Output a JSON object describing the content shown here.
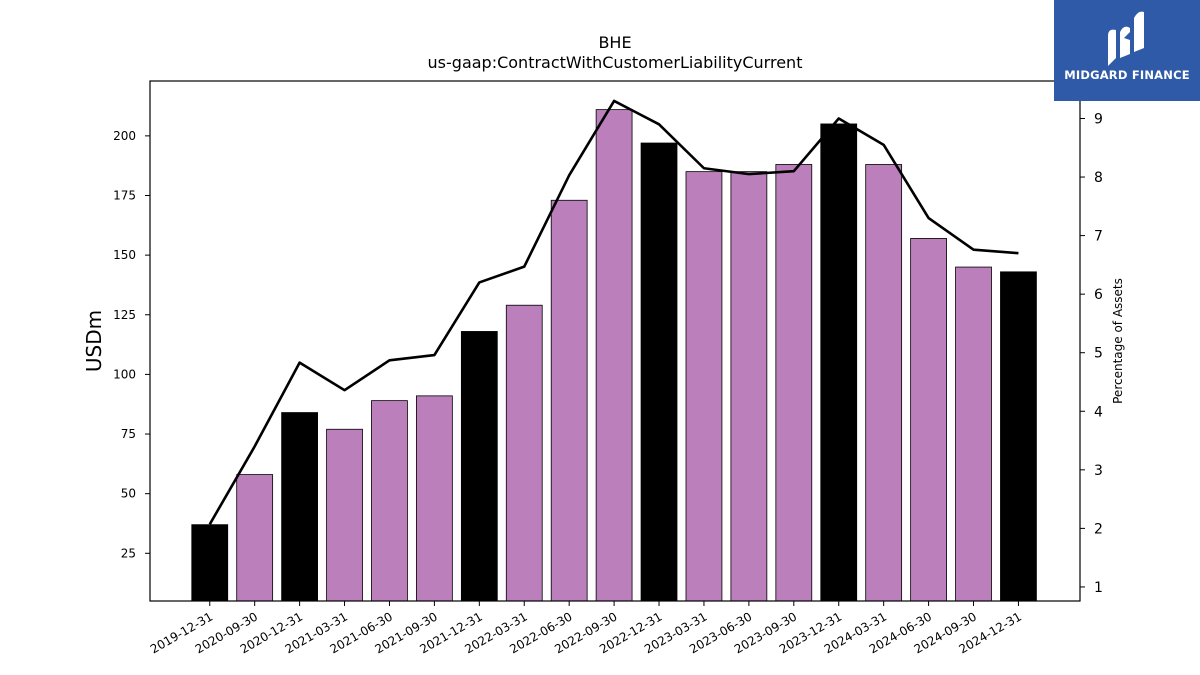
{
  "header": {
    "title": "BHE",
    "subtitle": "us-gaap:ContractWithCustomerLiabilityCurrent"
  },
  "brand": {
    "name": "MIDGARD FINANCE",
    "background": "#2f5aa8"
  },
  "chart_data": {
    "type": "bar",
    "title": "BHE",
    "subtitle": "us-gaap:ContractWithCustomerLiabilityCurrent",
    "ylabel": "USDm",
    "y2label": "Percentage of Assets",
    "categories": [
      "2019-12-31",
      "2020-09-30",
      "2020-12-31",
      "2021-03-31",
      "2021-06-30",
      "2021-09-30",
      "2021-12-31",
      "2022-03-31",
      "2022-06-30",
      "2022-09-30",
      "2022-12-31",
      "2023-03-31",
      "2023-06-30",
      "2023-09-30",
      "2023-12-31",
      "2024-03-31",
      "2024-06-30",
      "2024-09-30",
      "2024-12-31"
    ],
    "series": [
      {
        "type": "bar",
        "axis": "left",
        "values": [
          37,
          58,
          84,
          77,
          89,
          91,
          118,
          129,
          173,
          211,
          197,
          185,
          185,
          188,
          205,
          188,
          157,
          145,
          143
        ],
        "colors": [
          "#000000",
          "#bb7fbb",
          "#000000",
          "#bb7fbb",
          "#bb7fbb",
          "#bb7fbb",
          "#000000",
          "#bb7fbb",
          "#bb7fbb",
          "#bb7fbb",
          "#000000",
          "#bb7fbb",
          "#bb7fbb",
          "#bb7fbb",
          "#000000",
          "#bb7fbb",
          "#bb7fbb",
          "#bb7fbb",
          "#000000"
        ]
      },
      {
        "type": "line",
        "axis": "right",
        "color": "#000000",
        "values": [
          2.07,
          3.4,
          4.83,
          4.36,
          4.87,
          4.96,
          6.2,
          6.47,
          8.03,
          9.3,
          8.9,
          8.15,
          8.05,
          8.1,
          9.0,
          8.55,
          7.3,
          6.76,
          6.7
        ]
      }
    ],
    "ylim": [
      5,
      223
    ],
    "y2lim": [
      0.76,
      9.64
    ],
    "yticks": [
      25,
      50,
      75,
      100,
      125,
      150,
      175,
      200
    ],
    "y2ticks": [
      1,
      2,
      3,
      4,
      5,
      6,
      7,
      8,
      9
    ],
    "grid": false,
    "legend": "none"
  }
}
